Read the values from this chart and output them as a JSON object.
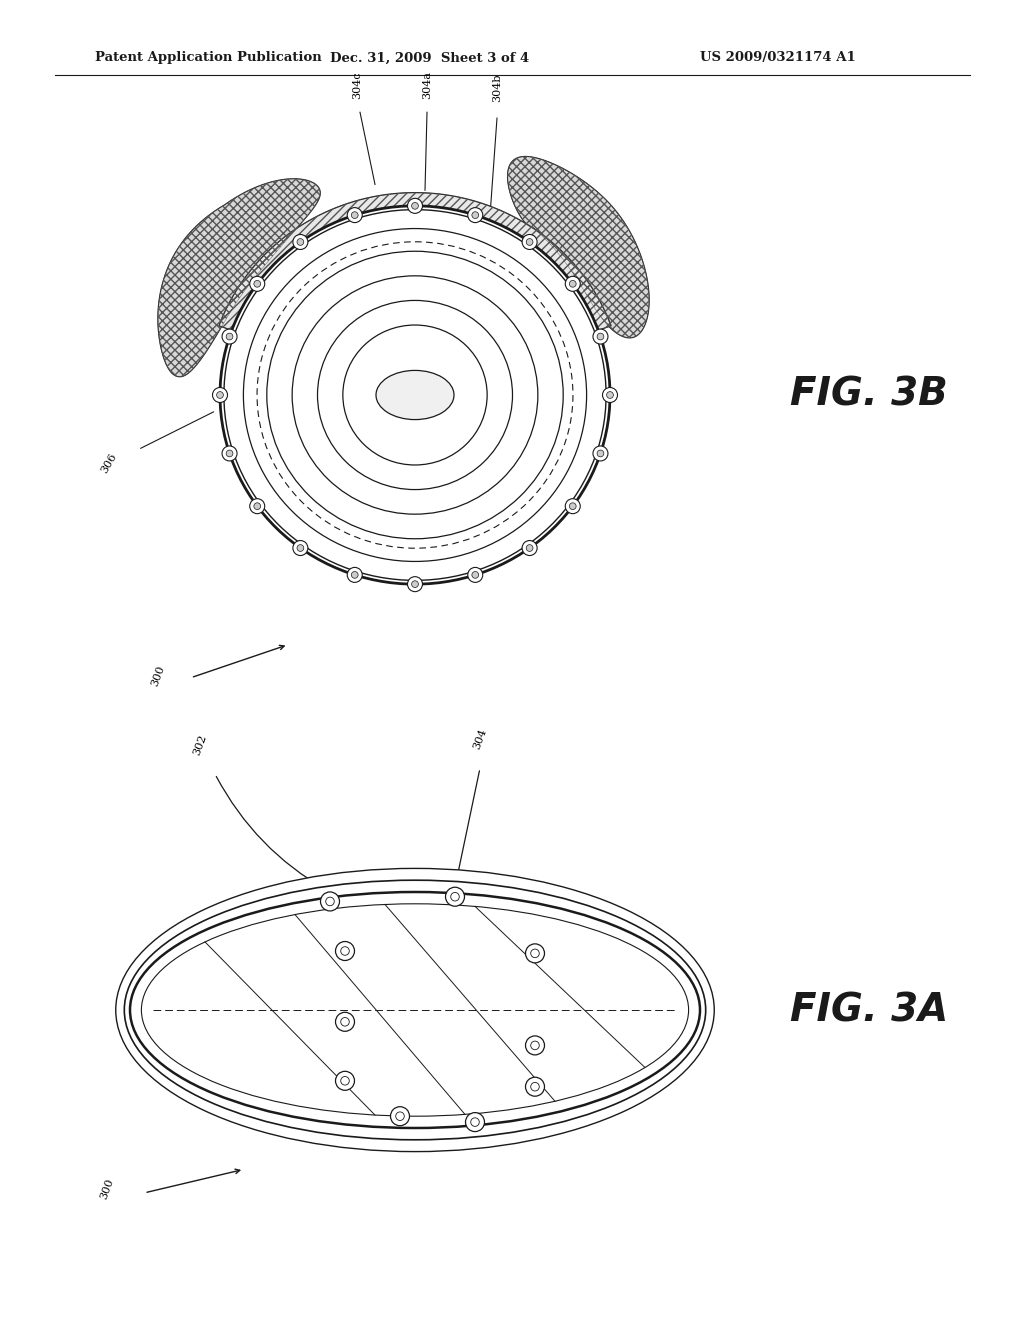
{
  "bg_color": "#ffffff",
  "line_color": "#1a1a1a",
  "header_left": "Patent Application Publication",
  "header_mid": "Dec. 31, 2009  Sheet 3 of 4",
  "header_right": "US 2009/0321174 A1",
  "fig3b_label": "FIG. 3B",
  "fig3a_label": "FIG. 3A"
}
